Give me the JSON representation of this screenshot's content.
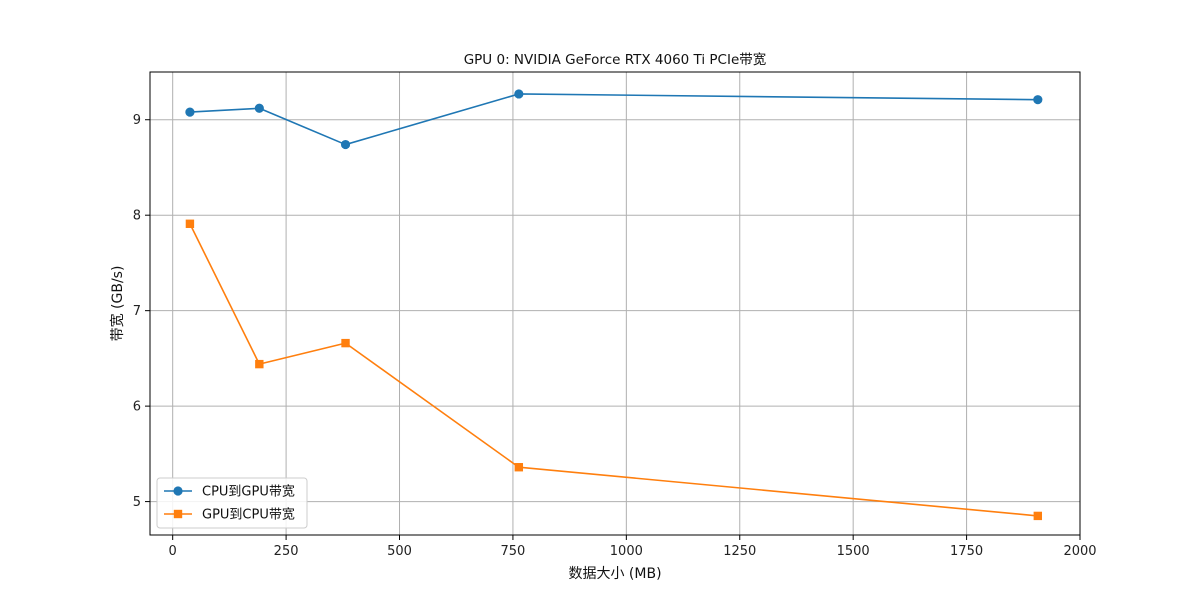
{
  "chart_data": {
    "type": "line",
    "title": "GPU 0: NVIDIA GeForce RTX 4060 Ti PCIe带宽",
    "xlabel": "数据大小 (MB)",
    "ylabel": "带宽 (GB/s)",
    "xlim": [
      -50,
      2000
    ],
    "ylim": [
      4.65,
      9.5
    ],
    "xticks": [
      0,
      250,
      500,
      750,
      1000,
      1250,
      1500,
      1750,
      2000
    ],
    "yticks": [
      5,
      6,
      7,
      8,
      9
    ],
    "grid": true,
    "legend_position": "lower-left",
    "series": [
      {
        "name": "CPU到GPU带宽",
        "color": "#1f77b4",
        "marker": "circle",
        "x": [
          38,
          191,
          381,
          763,
          1907
        ],
        "y": [
          9.08,
          9.12,
          8.74,
          9.27,
          9.21
        ]
      },
      {
        "name": "GPU到CPU带宽",
        "color": "#ff7f0e",
        "marker": "square",
        "x": [
          38,
          191,
          381,
          763,
          1907
        ],
        "y": [
          7.91,
          6.44,
          6.66,
          5.36,
          4.85
        ]
      }
    ]
  }
}
